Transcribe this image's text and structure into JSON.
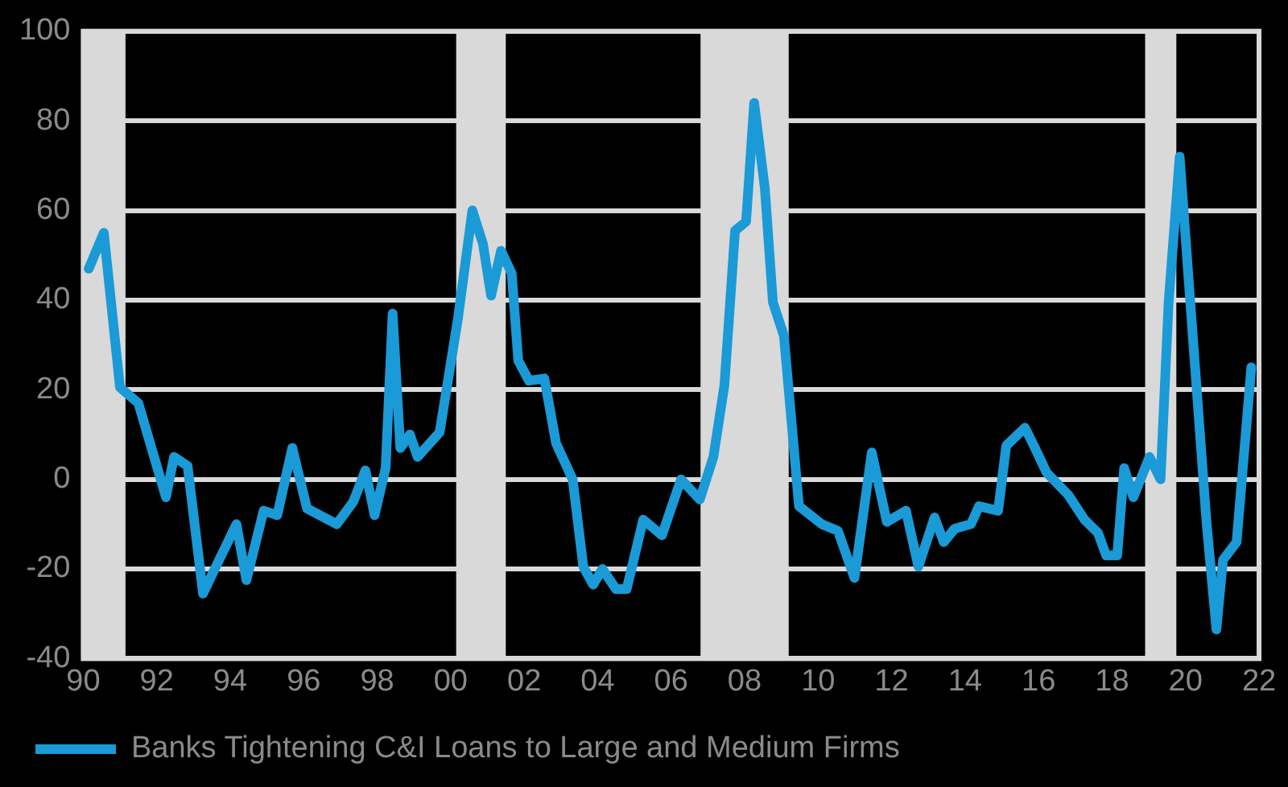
{
  "chart_data": {
    "type": "line",
    "xlim": [
      1990,
      2022
    ],
    "xticks": [
      {
        "value": 1990,
        "label": "90"
      },
      {
        "value": 1992,
        "label": "92"
      },
      {
        "value": 1994,
        "label": "94"
      },
      {
        "value": 1996,
        "label": "96"
      },
      {
        "value": 1998,
        "label": "98"
      },
      {
        "value": 2000,
        "label": "00"
      },
      {
        "value": 2002,
        "label": "02"
      },
      {
        "value": 2004,
        "label": "04"
      },
      {
        "value": 2006,
        "label": "06"
      },
      {
        "value": 2008,
        "label": "08"
      },
      {
        "value": 2010,
        "label": "10"
      },
      {
        "value": 2012,
        "label": "12"
      },
      {
        "value": 2014,
        "label": "14"
      },
      {
        "value": 2016,
        "label": "16"
      },
      {
        "value": 2018,
        "label": "18"
      },
      {
        "value": 2020,
        "label": "20"
      },
      {
        "value": 2022,
        "label": "22"
      }
    ],
    "ylim": [
      -40,
      100
    ],
    "yticks": [
      -40,
      -20,
      0,
      20,
      40,
      60,
      80,
      100
    ],
    "grid": "y",
    "legend": "bottom left",
    "marker": "none",
    "line_style": "solid",
    "bands": [
      {
        "axis": "x",
        "from": 1990.0,
        "to": 1991.15,
        "color": "#d9d9d9"
      },
      {
        "axis": "x",
        "from": 2000.15,
        "to": 2001.5,
        "color": "#d9d9d9"
      },
      {
        "axis": "x",
        "from": 2006.8,
        "to": 2009.2,
        "color": "#d9d9d9"
      },
      {
        "axis": "x",
        "from": 2018.9,
        "to": 2019.75,
        "color": "#d9d9d9"
      }
    ],
    "series": [
      {
        "name": "Banks Tightening C&I Loans to Large and Medium Firms",
        "color": "#1a9ad6",
        "x": [
          1990.15,
          1990.56,
          1991.0,
          1991.5,
          1992.25,
          1992.47,
          1992.84,
          1993.26,
          1993.58,
          1994.17,
          1994.44,
          1994.91,
          1995.28,
          1995.69,
          1996.09,
          1996.9,
          1997.35,
          1997.68,
          1997.93,
          1998.23,
          1998.42,
          1998.63,
          1998.89,
          1999.1,
          1999.7,
          2000.2,
          2000.59,
          2000.88,
          2001.1,
          2001.37,
          2001.66,
          2001.84,
          2002.13,
          2002.55,
          2002.87,
          2003.32,
          2003.61,
          2003.88,
          2004.13,
          2004.5,
          2004.79,
          2005.24,
          2005.75,
          2006.27,
          2006.78,
          2007.15,
          2007.45,
          2007.74,
          2008.04,
          2008.26,
          2008.55,
          2008.77,
          2009.07,
          2009.48,
          2010.1,
          2010.54,
          2010.99,
          2011.46,
          2011.87,
          2012.39,
          2012.73,
          2013.17,
          2013.42,
          2013.72,
          2014.16,
          2014.38,
          2014.9,
          2015.12,
          2015.63,
          2015.93,
          2016.22,
          2016.81,
          2017.25,
          2017.62,
          2017.84,
          2018.14,
          2018.33,
          2018.58,
          2019.02,
          2019.32,
          2019.54,
          2019.84,
          2020.13,
          2020.57,
          2020.84,
          2021.02,
          2021.39,
          2021.79
        ],
        "values": [
          47,
          55,
          20.5,
          17,
          -4,
          5,
          3,
          -25.5,
          -20,
          -10,
          -22.5,
          -7,
          -8,
          7,
          -6.5,
          -10,
          -5,
          2,
          -8,
          2.5,
          37,
          7,
          10,
          5,
          10.5,
          36,
          60,
          52.5,
          41,
          51,
          46,
          26.5,
          22,
          22.5,
          8,
          0,
          -19.5,
          -23.5,
          -20,
          -24.5,
          -24.5,
          -9,
          -12.5,
          0,
          -4.5,
          5,
          21,
          55.5,
          57.5,
          84,
          65,
          39.5,
          32,
          -6,
          -10,
          -11.5,
          -22,
          6,
          -9.5,
          -7,
          -19.5,
          -8.5,
          -14,
          -11,
          -10,
          -6,
          -7,
          7.5,
          11.5,
          6.5,
          1.5,
          -3.5,
          -9,
          -12,
          -17,
          -17,
          2.5,
          -4,
          5,
          0,
          39.5,
          72,
          39.5,
          -9.5,
          -33.5,
          -18,
          -14,
          25
        ]
      }
    ]
  }
}
